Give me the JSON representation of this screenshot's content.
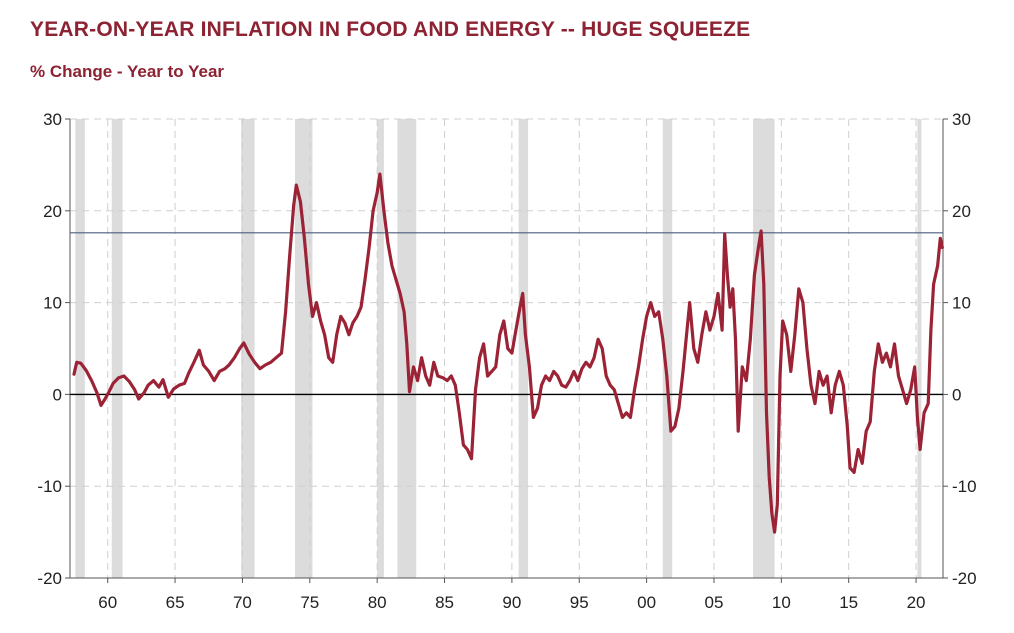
{
  "chart_data": {
    "type": "line",
    "title": "YEAR-ON-YEAR INFLATION IN FOOD AND ENERGY -- HUGE SQUEEZE",
    "subtitle": "% Change - Year to Year",
    "xlabel": "",
    "ylabel": "",
    "xlim": [
      1957.2,
      2022.0
    ],
    "ylim": [
      -20,
      30
    ],
    "x_ticks": [
      1960,
      1965,
      1970,
      1975,
      1980,
      1985,
      1990,
      1995,
      2000,
      2005,
      2010,
      2015,
      2020
    ],
    "x_tick_labels": [
      "60",
      "65",
      "70",
      "75",
      "80",
      "85",
      "90",
      "95",
      "00",
      "05",
      "10",
      "15",
      "20"
    ],
    "y_ticks": [
      -20,
      -10,
      0,
      10,
      20,
      30
    ],
    "y_tick_labels": [
      "-20",
      "-10",
      "0",
      "10",
      "20",
      "30"
    ],
    "y_ticks_right": [
      -20,
      -10,
      0,
      10,
      20,
      30
    ],
    "y_tick_labels_right": [
      "-20",
      "-10",
      "0",
      "10",
      "20",
      "30"
    ],
    "grid": true,
    "recession_shading": [
      [
        1957.6,
        1958.3
      ],
      [
        1960.3,
        1961.1
      ],
      [
        1969.9,
        1970.9
      ],
      [
        1973.9,
        1975.2
      ],
      [
        1980.0,
        1980.5
      ],
      [
        1981.5,
        1982.9
      ],
      [
        1990.5,
        1991.2
      ],
      [
        2001.2,
        2001.9
      ],
      [
        2007.9,
        2009.5
      ],
      [
        2020.1,
        2020.4
      ]
    ],
    "reference_lines": [
      {
        "y": 17.6,
        "color": "#4a5f7f"
      },
      {
        "y": 0,
        "color": "#000000"
      }
    ],
    "series": [
      {
        "color": "#9b2335",
        "points": [
          [
            1957.5,
            2.2
          ],
          [
            1957.7,
            3.5
          ],
          [
            1958.0,
            3.4
          ],
          [
            1958.4,
            2.6
          ],
          [
            1958.8,
            1.5
          ],
          [
            1959.2,
            0.2
          ],
          [
            1959.5,
            -1.2
          ],
          [
            1959.8,
            -0.5
          ],
          [
            1960.1,
            0.3
          ],
          [
            1960.4,
            1.2
          ],
          [
            1960.8,
            1.8
          ],
          [
            1961.2,
            2.0
          ],
          [
            1961.6,
            1.4
          ],
          [
            1962.0,
            0.5
          ],
          [
            1962.3,
            -0.5
          ],
          [
            1962.7,
            0.2
          ],
          [
            1963.0,
            1.0
          ],
          [
            1963.4,
            1.5
          ],
          [
            1963.8,
            0.8
          ],
          [
            1964.1,
            1.6
          ],
          [
            1964.5,
            -0.3
          ],
          [
            1964.9,
            0.6
          ],
          [
            1965.3,
            1.0
          ],
          [
            1965.7,
            1.2
          ],
          [
            1966.0,
            2.3
          ],
          [
            1966.4,
            3.5
          ],
          [
            1966.8,
            4.8
          ],
          [
            1967.1,
            3.2
          ],
          [
            1967.5,
            2.5
          ],
          [
            1967.9,
            1.5
          ],
          [
            1968.3,
            2.5
          ],
          [
            1968.7,
            2.8
          ],
          [
            1969.0,
            3.2
          ],
          [
            1969.4,
            4.0
          ],
          [
            1969.8,
            5.0
          ],
          [
            1970.1,
            5.6
          ],
          [
            1970.5,
            4.4
          ],
          [
            1970.9,
            3.5
          ],
          [
            1971.3,
            2.8
          ],
          [
            1971.7,
            3.2
          ],
          [
            1972.1,
            3.5
          ],
          [
            1972.5,
            4.0
          ],
          [
            1972.9,
            4.5
          ],
          [
            1973.2,
            9.0
          ],
          [
            1973.5,
            15.0
          ],
          [
            1973.8,
            20.5
          ],
          [
            1974.0,
            22.8
          ],
          [
            1974.3,
            21.0
          ],
          [
            1974.6,
            17.0
          ],
          [
            1974.9,
            12.0
          ],
          [
            1975.2,
            8.5
          ],
          [
            1975.5,
            10.0
          ],
          [
            1975.8,
            8.0
          ],
          [
            1976.1,
            6.5
          ],
          [
            1976.4,
            4.0
          ],
          [
            1976.7,
            3.5
          ],
          [
            1977.0,
            6.5
          ],
          [
            1977.3,
            8.5
          ],
          [
            1977.6,
            7.8
          ],
          [
            1977.9,
            6.5
          ],
          [
            1978.2,
            7.8
          ],
          [
            1978.5,
            8.5
          ],
          [
            1978.8,
            9.5
          ],
          [
            1979.1,
            12.5
          ],
          [
            1979.4,
            16.0
          ],
          [
            1979.7,
            20.0
          ],
          [
            1980.0,
            22.0
          ],
          [
            1980.2,
            24.0
          ],
          [
            1980.5,
            20.0
          ],
          [
            1980.8,
            16.5
          ],
          [
            1981.1,
            14.0
          ],
          [
            1981.4,
            12.5
          ],
          [
            1981.7,
            11.0
          ],
          [
            1982.0,
            9.0
          ],
          [
            1982.2,
            5.5
          ],
          [
            1982.4,
            0.3
          ],
          [
            1982.7,
            3.0
          ],
          [
            1983.0,
            1.5
          ],
          [
            1983.3,
            4.0
          ],
          [
            1983.6,
            2.0
          ],
          [
            1983.9,
            1.0
          ],
          [
            1984.2,
            3.5
          ],
          [
            1984.5,
            2.0
          ],
          [
            1984.9,
            1.8
          ],
          [
            1985.2,
            1.5
          ],
          [
            1985.5,
            2.0
          ],
          [
            1985.8,
            1.0
          ],
          [
            1986.1,
            -2.0
          ],
          [
            1986.4,
            -5.5
          ],
          [
            1986.7,
            -6.0
          ],
          [
            1987.0,
            -7.0
          ],
          [
            1987.3,
            0.5
          ],
          [
            1987.6,
            4.0
          ],
          [
            1987.9,
            5.5
          ],
          [
            1988.2,
            2.0
          ],
          [
            1988.5,
            2.5
          ],
          [
            1988.8,
            3.0
          ],
          [
            1989.1,
            6.5
          ],
          [
            1989.4,
            8.0
          ],
          [
            1989.7,
            5.0
          ],
          [
            1990.0,
            4.5
          ],
          [
            1990.3,
            7.0
          ],
          [
            1990.6,
            9.5
          ],
          [
            1990.8,
            11.0
          ],
          [
            1991.0,
            6.5
          ],
          [
            1991.3,
            3.0
          ],
          [
            1991.6,
            -2.5
          ],
          [
            1991.9,
            -1.5
          ],
          [
            1992.2,
            1.0
          ],
          [
            1992.5,
            2.0
          ],
          [
            1992.8,
            1.5
          ],
          [
            1993.1,
            2.5
          ],
          [
            1993.4,
            2.0
          ],
          [
            1993.7,
            1.0
          ],
          [
            1994.0,
            0.8
          ],
          [
            1994.3,
            1.5
          ],
          [
            1994.6,
            2.5
          ],
          [
            1994.9,
            1.5
          ],
          [
            1995.2,
            2.8
          ],
          [
            1995.5,
            3.5
          ],
          [
            1995.8,
            3.0
          ],
          [
            1996.1,
            4.0
          ],
          [
            1996.4,
            6.0
          ],
          [
            1996.7,
            5.0
          ],
          [
            1997.0,
            2.0
          ],
          [
            1997.3,
            1.0
          ],
          [
            1997.6,
            0.5
          ],
          [
            1997.9,
            -1.0
          ],
          [
            1998.2,
            -2.5
          ],
          [
            1998.5,
            -2.0
          ],
          [
            1998.8,
            -2.5
          ],
          [
            1999.1,
            0.5
          ],
          [
            1999.4,
            3.0
          ],
          [
            1999.7,
            6.0
          ],
          [
            2000.0,
            8.5
          ],
          [
            2000.3,
            10.0
          ],
          [
            2000.6,
            8.5
          ],
          [
            2000.9,
            9.0
          ],
          [
            2001.2,
            6.0
          ],
          [
            2001.5,
            2.0
          ],
          [
            2001.8,
            -4.0
          ],
          [
            2002.1,
            -3.5
          ],
          [
            2002.4,
            -1.5
          ],
          [
            2002.7,
            2.5
          ],
          [
            2003.0,
            7.0
          ],
          [
            2003.2,
            10.0
          ],
          [
            2003.5,
            5.0
          ],
          [
            2003.8,
            3.5
          ],
          [
            2004.1,
            6.5
          ],
          [
            2004.4,
            9.0
          ],
          [
            2004.7,
            7.0
          ],
          [
            2005.0,
            8.5
          ],
          [
            2005.3,
            11.0
          ],
          [
            2005.6,
            7.0
          ],
          [
            2005.8,
            17.5
          ],
          [
            2006.0,
            13.0
          ],
          [
            2006.2,
            9.5
          ],
          [
            2006.4,
            11.5
          ],
          [
            2006.6,
            6.0
          ],
          [
            2006.8,
            -4.0
          ],
          [
            2007.1,
            3.0
          ],
          [
            2007.4,
            1.5
          ],
          [
            2007.7,
            6.0
          ],
          [
            2008.0,
            13.0
          ],
          [
            2008.3,
            16.0
          ],
          [
            2008.5,
            17.8
          ],
          [
            2008.7,
            12.0
          ],
          [
            2008.9,
            -2.0
          ],
          [
            2009.1,
            -9.0
          ],
          [
            2009.3,
            -13.0
          ],
          [
            2009.5,
            -15.0
          ],
          [
            2009.7,
            -12.0
          ],
          [
            2009.9,
            2.0
          ],
          [
            2010.1,
            8.0
          ],
          [
            2010.4,
            6.5
          ],
          [
            2010.7,
            2.5
          ],
          [
            2011.0,
            6.5
          ],
          [
            2011.3,
            11.5
          ],
          [
            2011.6,
            10.0
          ],
          [
            2011.9,
            5.0
          ],
          [
            2012.2,
            1.0
          ],
          [
            2012.5,
            -1.0
          ],
          [
            2012.8,
            2.5
          ],
          [
            2013.1,
            1.0
          ],
          [
            2013.4,
            2.0
          ],
          [
            2013.7,
            -2.0
          ],
          [
            2014.0,
            1.0
          ],
          [
            2014.3,
            2.5
          ],
          [
            2014.6,
            1.0
          ],
          [
            2014.9,
            -3.5
          ],
          [
            2015.1,
            -8.0
          ],
          [
            2015.4,
            -8.5
          ],
          [
            2015.7,
            -6.0
          ],
          [
            2016.0,
            -7.5
          ],
          [
            2016.3,
            -4.0
          ],
          [
            2016.6,
            -3.0
          ],
          [
            2016.9,
            2.5
          ],
          [
            2017.2,
            5.5
          ],
          [
            2017.5,
            3.5
          ],
          [
            2017.8,
            4.5
          ],
          [
            2018.1,
            3.0
          ],
          [
            2018.4,
            5.5
          ],
          [
            2018.7,
            2.0
          ],
          [
            2019.0,
            0.5
          ],
          [
            2019.3,
            -1.0
          ],
          [
            2019.6,
            0.5
          ],
          [
            2019.9,
            3.0
          ],
          [
            2020.1,
            -2.5
          ],
          [
            2020.3,
            -6.0
          ],
          [
            2020.6,
            -2.0
          ],
          [
            2020.9,
            -1.0
          ],
          [
            2021.1,
            7.0
          ],
          [
            2021.3,
            12.0
          ],
          [
            2021.6,
            14.0
          ],
          [
            2021.8,
            17.0
          ],
          [
            2021.95,
            16.0
          ]
        ]
      }
    ]
  }
}
